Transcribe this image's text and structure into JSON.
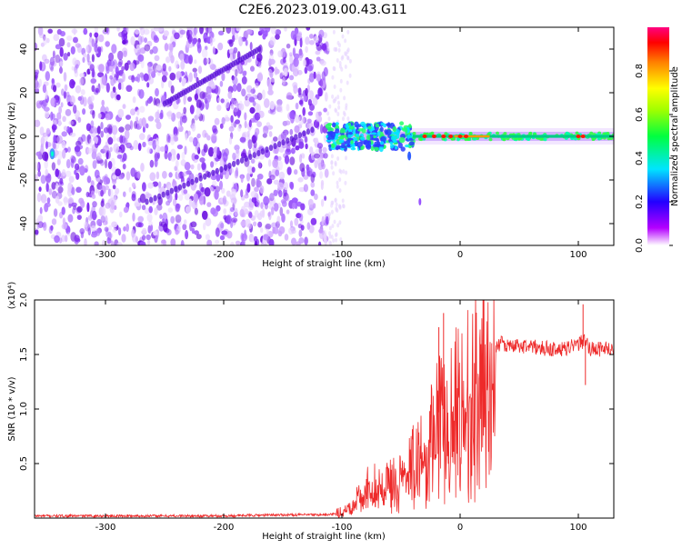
{
  "title": "C2E6.2023.019.00.43.G11",
  "chart_data": [
    {
      "type": "heatmap",
      "xlabel": "Height of straight line (km)",
      "ylabel": "Frequency (Hz)",
      "xlim": [
        -360,
        130
      ],
      "ylim": [
        -50,
        50
      ],
      "xticks": [
        -300,
        -200,
        -100,
        0,
        100
      ],
      "yticks": [
        -40,
        -20,
        0,
        20,
        40
      ],
      "colorbar": {
        "label": "Normalized spectral amplitude",
        "range": [
          0.0,
          1.0
        ],
        "ticks": [
          "0.0",
          "0.2",
          "0.4",
          "0.6",
          "0.8"
        ],
        "colors": [
          "#ffffff",
          "#b400ff",
          "#0000ff",
          "#00ffff",
          "#00ff00",
          "#ffff00",
          "#ff8000",
          "#ff0000",
          "#ff0080"
        ]
      },
      "features": [
        {
          "region": "noise",
          "x": [
            -360,
            -112
          ],
          "y": [
            -50,
            50
          ],
          "amplitude": 0.15
        },
        {
          "region": "carrier",
          "x": [
            -112,
            130
          ],
          "y": [
            0
          ],
          "amplitude": 0.85
        },
        {
          "region": "chirp-line",
          "x": [
            -265,
            -125
          ],
          "y": [
            -30,
            3
          ],
          "amplitude": 0.3
        },
        {
          "region": "chirp-line",
          "x": [
            -250,
            -170
          ],
          "y": [
            15,
            40
          ],
          "amplitude": 0.3
        }
      ]
    },
    {
      "type": "line",
      "xlabel": "Height of straight line (km)",
      "ylabel": "SNR (10 * v/v)",
      "scale_label": "(x10⁴)",
      "xlim": [
        -360,
        130
      ],
      "ylim": [
        0,
        2.0
      ],
      "xticks": [
        -300,
        -200,
        -100,
        0,
        100
      ],
      "yticks": [
        "0.5",
        "1.0",
        "1.5",
        "2.0"
      ],
      "series": [
        {
          "color": "#ee2a2a",
          "x": [
            -360,
            -300,
            -250,
            -200,
            -150,
            -110,
            -100,
            -95,
            -90,
            -85,
            -80,
            -75,
            -70,
            -65,
            -60,
            -55,
            -50,
            -45,
            -40,
            -35,
            -30,
            -25,
            -20,
            -15,
            -10,
            -5,
            0,
            5,
            10,
            15,
            20,
            25,
            30,
            35,
            40,
            50,
            60,
            70,
            80,
            90,
            100,
            105,
            110,
            120,
            130
          ],
          "y": [
            0.02,
            0.02,
            0.02,
            0.02,
            0.03,
            0.03,
            0.05,
            0.12,
            0.18,
            0.25,
            0.32,
            0.35,
            0.33,
            0.3,
            0.35,
            0.4,
            0.38,
            0.5,
            0.55,
            0.65,
            0.75,
            0.85,
            0.95,
            1.0,
            1.0,
            1.1,
            1.2,
            1.3,
            1.38,
            1.45,
            1.52,
            1.55,
            1.58,
            1.6,
            1.58,
            1.58,
            1.57,
            1.56,
            1.55,
            1.55,
            1.6,
            1.62,
            1.55,
            1.55,
            1.55
          ]
        }
      ]
    }
  ]
}
